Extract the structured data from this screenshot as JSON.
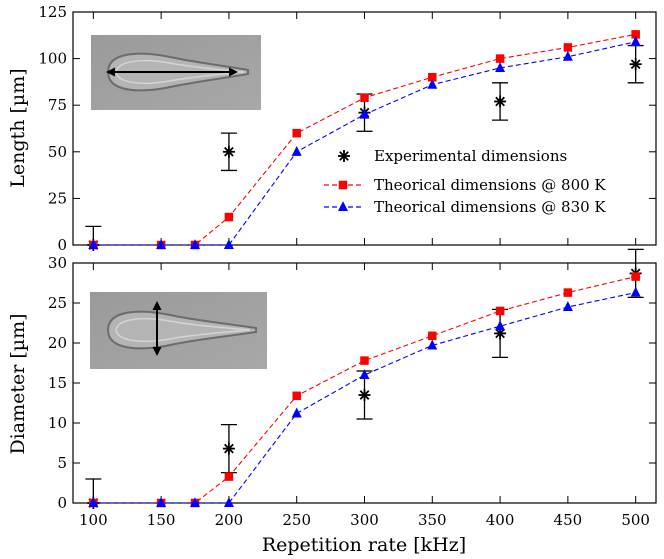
{
  "chart_data": [
    {
      "type": "line",
      "ylabel": "Length [µm]",
      "xlabel": "",
      "xlim": [
        85,
        515
      ],
      "ylim": [
        0,
        125
      ],
      "xticks": [
        100,
        150,
        200,
        250,
        300,
        350,
        400,
        450,
        500
      ],
      "yticks": [
        0,
        25,
        50,
        75,
        100,
        125
      ],
      "legend": "center-right",
      "inset_image": "micrograph of a drop-shaped modification with a horizontal double-headed arrow indicating length",
      "series": [
        {
          "name": "Experimental dimensions",
          "marker": "asterisk",
          "color": "#000000",
          "x": [
            100,
            200,
            300,
            400,
            500
          ],
          "y": [
            0,
            50,
            71,
            77,
            97
          ],
          "err": [
            10,
            10,
            10,
            10,
            10
          ]
        },
        {
          "name": "Theorical dimensions @ 800 K",
          "marker": "square",
          "color": "#ff0000",
          "x": [
            100,
            150,
            175,
            200,
            250,
            300,
            350,
            400,
            450,
            500
          ],
          "y": [
            0,
            0,
            0,
            15,
            60,
            79,
            90,
            100,
            106,
            113
          ]
        },
        {
          "name": "Theorical dimensions @ 830 K",
          "marker": "triangle",
          "color": "#0000ff",
          "x": [
            100,
            150,
            175,
            200,
            250,
            300,
            350,
            400,
            450,
            500
          ],
          "y": [
            0,
            0,
            0,
            0,
            50,
            70,
            86,
            95,
            101,
            109
          ]
        }
      ]
    },
    {
      "type": "line",
      "ylabel": "Diameter [µm]",
      "xlabel": "Repetition rate [kHz]",
      "xlim": [
        85,
        515
      ],
      "ylim": [
        0,
        30
      ],
      "xticks": [
        100,
        150,
        200,
        250,
        300,
        350,
        400,
        450,
        500
      ],
      "yticks": [
        0,
        5,
        10,
        15,
        20,
        25,
        30
      ],
      "inset_image": "micrograph of a drop-shaped modification with a vertical double-headed arrow indicating diameter",
      "series": [
        {
          "name": "Experimental dimensions",
          "marker": "asterisk",
          "color": "#000000",
          "x": [
            100,
            200,
            300,
            400,
            500
          ],
          "y": [
            0,
            6.8,
            13.5,
            21.2,
            28.7
          ],
          "err": [
            3,
            3,
            3,
            3,
            3
          ]
        },
        {
          "name": "Theorical dimensions @ 800 K",
          "marker": "square",
          "color": "#ff0000",
          "x": [
            100,
            150,
            175,
            200,
            250,
            300,
            350,
            400,
            450,
            500
          ],
          "y": [
            0,
            0,
            0,
            3.3,
            13.4,
            17.8,
            20.9,
            24.0,
            26.3,
            28.3
          ]
        },
        {
          "name": "Theorical dimensions @ 830 K",
          "marker": "triangle",
          "color": "#0000ff",
          "x": [
            100,
            150,
            175,
            200,
            250,
            300,
            350,
            400,
            450,
            500
          ],
          "y": [
            0,
            0,
            0,
            0,
            11.2,
            16.0,
            19.7,
            22.1,
            24.5,
            26.3
          ]
        }
      ]
    }
  ]
}
